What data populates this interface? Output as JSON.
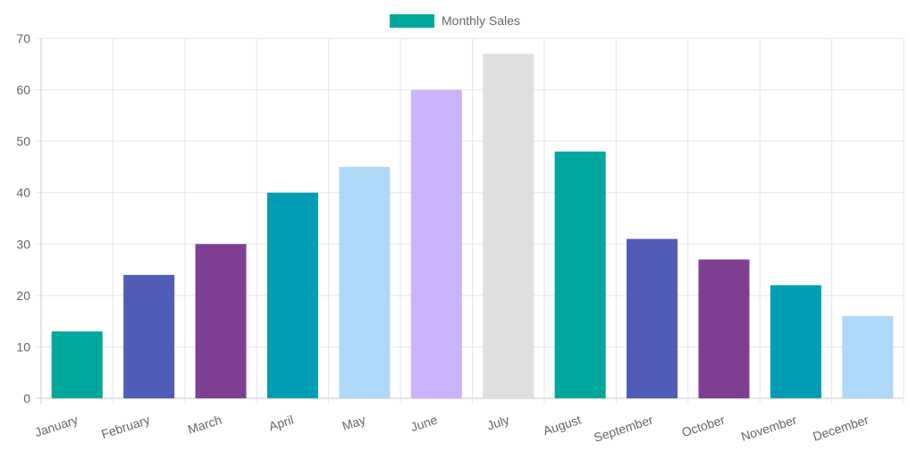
{
  "chart_data": {
    "type": "bar",
    "title": "",
    "xlabel": "",
    "ylabel": "",
    "categories": [
      "January",
      "February",
      "March",
      "April",
      "May",
      "June",
      "July",
      "August",
      "September",
      "October",
      "November",
      "December"
    ],
    "series": [
      {
        "name": "Monthly Sales",
        "values": [
          13,
          24,
          30,
          40,
          45,
          60,
          67,
          48,
          31,
          27,
          22,
          16
        ]
      }
    ],
    "ylim": [
      0,
      70
    ],
    "yticks": [
      "0",
      "10",
      "20",
      "30",
      "40",
      "50",
      "60",
      "70"
    ],
    "grid": true,
    "legend_position": "top",
    "legend_color": "#00A79D",
    "bar_colors": [
      "#00A79D",
      "#505CB5",
      "#7E3F92",
      "#009DB5",
      "#AED8F7",
      "#CBB3FF",
      "#DEDFE0",
      "#00A79D",
      "#505CB5",
      "#7E3F92",
      "#009DB5",
      "#AED8F7"
    ]
  }
}
